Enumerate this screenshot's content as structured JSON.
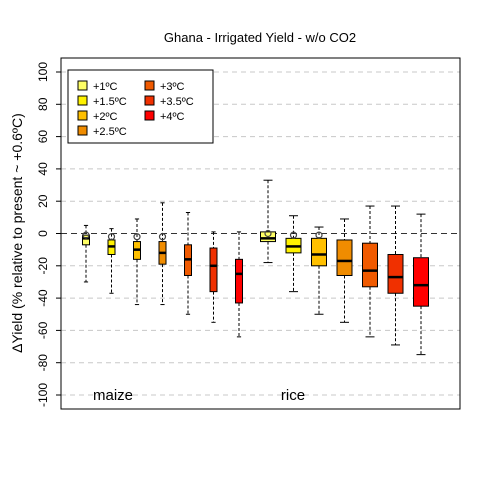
{
  "chart_data": {
    "type": "box",
    "title": "Ghana - Irrigated Yield - w/o CO2",
    "ylabel": "ΔYield (% relative to present ~ +0.6ºC)",
    "xlabel": "",
    "ylim": [
      -100,
      100
    ],
    "yticks": [
      100,
      80,
      60,
      40,
      20,
      0,
      -20,
      -40,
      -60,
      -80,
      -100
    ],
    "grid": true,
    "legend_position": "top-left",
    "groups": [
      {
        "label": "maize"
      },
      {
        "label": "rice"
      }
    ],
    "series": [
      {
        "name": "+1ºC",
        "color": "#FFFF66"
      },
      {
        "name": "+1.5ºC",
        "color": "#FFF200"
      },
      {
        "name": "+2ºC",
        "color": "#FFC000"
      },
      {
        "name": "+2.5ºC",
        "color": "#F08C00"
      },
      {
        "name": "+3ºC",
        "color": "#F05A00"
      },
      {
        "name": "+3.5ºC",
        "color": "#F03000"
      },
      {
        "name": "+4ºC",
        "color": "#FF0000"
      }
    ],
    "boxes": [
      {
        "group": "maize",
        "series": "+1ºC",
        "whisker_low": -30,
        "q1": -7,
        "median": -3,
        "q3": -1,
        "whisker_high": 5,
        "outlier_circle": true,
        "mean_marker": -1
      },
      {
        "group": "maize",
        "series": "+1.5ºC",
        "whisker_low": -37,
        "q1": -13,
        "median": -8,
        "q3": -4,
        "whisker_high": 3,
        "outlier_circle": true,
        "mean_marker": -2
      },
      {
        "group": "maize",
        "series": "+2ºC",
        "whisker_low": -44,
        "q1": -16,
        "median": -10,
        "q3": -5,
        "whisker_high": 9,
        "outlier_circle": true,
        "mean_marker": -2
      },
      {
        "group": "maize",
        "series": "+2.5ºC",
        "whisker_low": -44,
        "q1": -19,
        "median": -12,
        "q3": -5,
        "whisker_high": 19,
        "outlier_circle": true,
        "mean_marker": -2
      },
      {
        "group": "maize",
        "series": "+3ºC",
        "whisker_low": -50,
        "q1": -26,
        "median": -16,
        "q3": -7,
        "whisker_high": 13,
        "outlier_circle": false,
        "mean_marker": null
      },
      {
        "group": "maize",
        "series": "+3.5ºC",
        "whisker_low": -55,
        "q1": -36,
        "median": -20,
        "q3": -9,
        "whisker_high": 1,
        "outlier_circle": false,
        "mean_marker": null
      },
      {
        "group": "maize",
        "series": "+4ºC",
        "whisker_low": -64,
        "q1": -43,
        "median": -25,
        "q3": -16,
        "whisker_high": 1,
        "outlier_circle": false,
        "mean_marker": null
      },
      {
        "group": "rice",
        "series": "+1ºC",
        "whisker_low": -18,
        "q1": -5,
        "median": -3,
        "q3": 1,
        "whisker_high": 33,
        "outlier_circle": true,
        "mean_marker": 0
      },
      {
        "group": "rice",
        "series": "+1.5ºC",
        "whisker_low": -36,
        "q1": -12,
        "median": -8,
        "q3": -3,
        "whisker_high": 11,
        "outlier_circle": true,
        "mean_marker": -1
      },
      {
        "group": "rice",
        "series": "+2ºC",
        "whisker_low": -50,
        "q1": -20,
        "median": -13,
        "q3": -3,
        "whisker_high": 4,
        "outlier_circle": true,
        "mean_marker": -1
      },
      {
        "group": "rice",
        "series": "+2.5ºC",
        "whisker_low": -55,
        "q1": -26,
        "median": -17,
        "q3": -4,
        "whisker_high": 9,
        "outlier_circle": false,
        "mean_marker": null
      },
      {
        "group": "rice",
        "series": "+3ºC",
        "whisker_low": -64,
        "q1": -33,
        "median": -23,
        "q3": -6,
        "whisker_high": 17,
        "outlier_circle": false,
        "mean_marker": null
      },
      {
        "group": "rice",
        "series": "+3.5ºC",
        "whisker_low": -69,
        "q1": -37,
        "median": -27,
        "q3": -13,
        "whisker_high": 17,
        "outlier_circle": false,
        "mean_marker": null
      },
      {
        "group": "rice",
        "series": "+4ºC",
        "whisker_low": -75,
        "q1": -45,
        "median": -32,
        "q3": -15,
        "whisker_high": 12,
        "outlier_circle": false,
        "mean_marker": null
      }
    ]
  }
}
